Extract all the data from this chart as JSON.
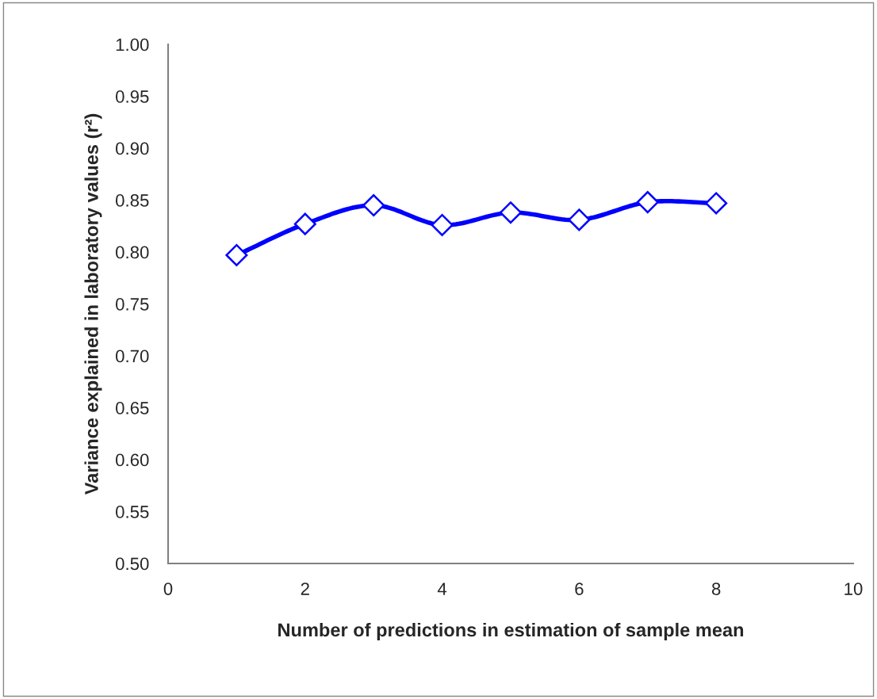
{
  "chart_data": {
    "type": "line",
    "xlabel": "Number of predictions in estimation of sample mean",
    "ylabel": "Variance explained in laboratory values (r²)",
    "x": [
      1,
      2,
      3,
      4,
      5,
      6,
      7,
      8
    ],
    "series": [
      {
        "color": "#0000ff",
        "values": [
          0.797,
          0.827,
          0.845,
          0.826,
          0.838,
          0.831,
          0.848,
          0.847
        ]
      }
    ],
    "xlim": [
      0,
      10
    ],
    "xticks": [
      0,
      2,
      4,
      6,
      8,
      10
    ],
    "ylim": [
      0.5,
      1.0
    ],
    "yticks": [
      {
        "value": 0.5,
        "label": "0.50"
      },
      {
        "value": 0.55,
        "label": "0.55"
      },
      {
        "value": 0.6,
        "label": "0.60"
      },
      {
        "value": 0.65,
        "label": "0.65"
      },
      {
        "value": 0.7,
        "label": "0.70"
      },
      {
        "value": 0.75,
        "label": "0.75"
      },
      {
        "value": 0.8,
        "label": "0.80"
      },
      {
        "value": 0.85,
        "label": "0.85"
      },
      {
        "value": 0.9,
        "label": "0.90"
      },
      {
        "value": 0.95,
        "label": "0.95"
      },
      {
        "value": 1.0,
        "label": "1.00"
      }
    ],
    "marker": "diamond",
    "grid": false
  }
}
